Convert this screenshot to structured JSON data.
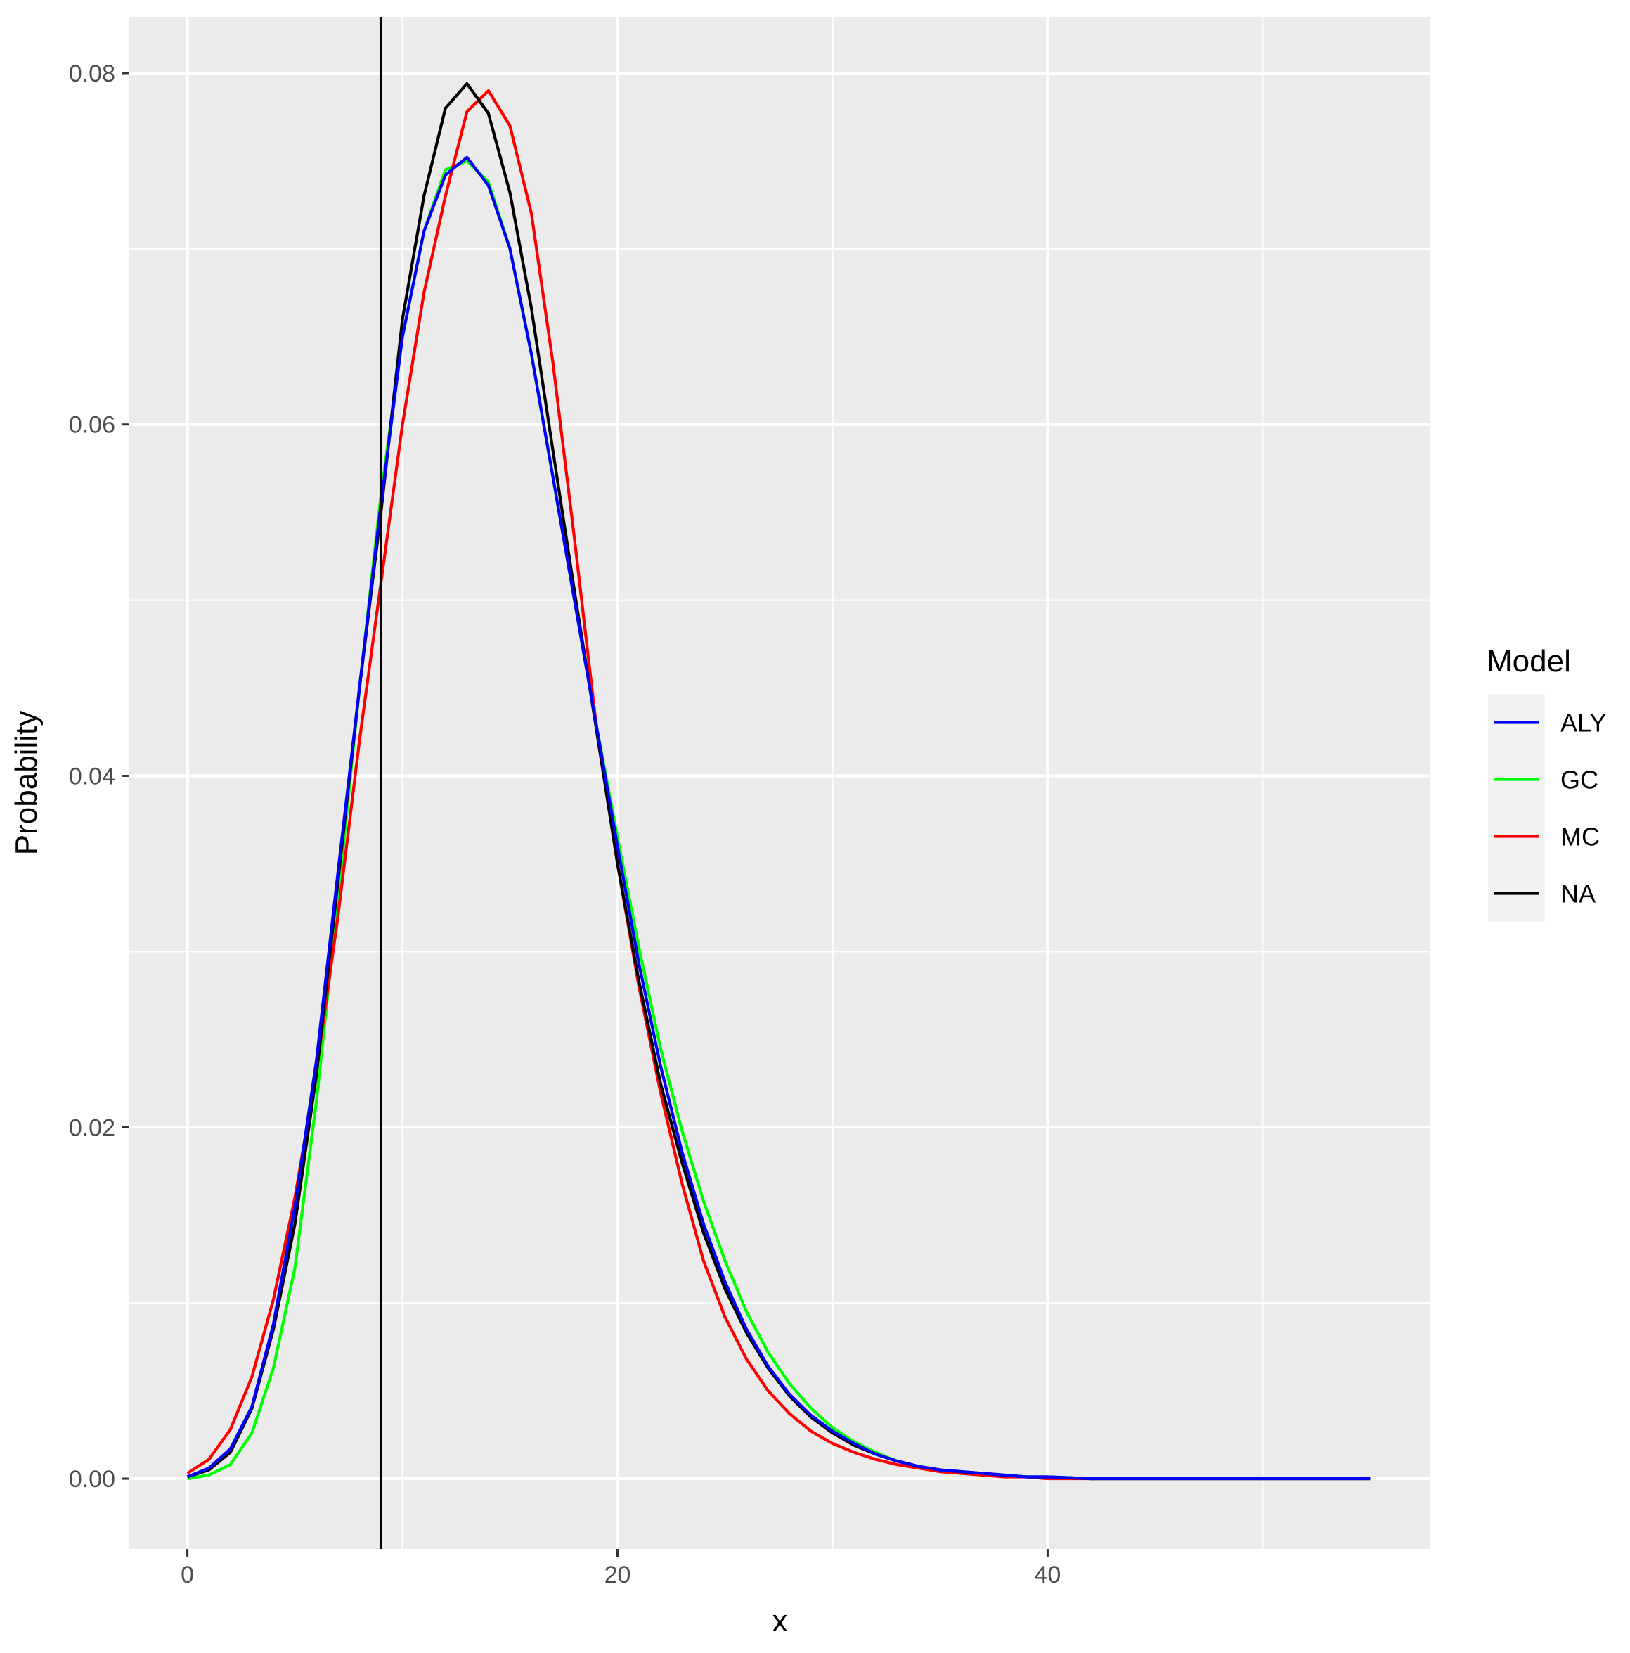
{
  "chart_data": {
    "type": "line",
    "xlabel": "x",
    "ylabel": "Probability",
    "xlim": [
      -2.7,
      57.8
    ],
    "ylim": [
      -0.004,
      0.0832
    ],
    "x_ticks": [
      0,
      20,
      40
    ],
    "x_tick_labels": [
      "0",
      "20",
      "40"
    ],
    "y_ticks": [
      0.0,
      0.02,
      0.04,
      0.06,
      0.08
    ],
    "y_tick_labels": [
      "0.00",
      "0.02",
      "0.04",
      "0.06",
      "0.08"
    ],
    "grid": true,
    "panel_background": "#ebebeb",
    "vline": {
      "x": 9,
      "color": "#000000"
    },
    "legend": {
      "title": "Model",
      "placement": "right",
      "entries": [
        {
          "label": "ALY",
          "color": "#0000ff"
        },
        {
          "label": "GC",
          "color": "#00ff00"
        },
        {
          "label": "MC",
          "color": "#ff0000"
        },
        {
          "label": "NA",
          "color": "#000000"
        }
      ]
    },
    "series": [
      {
        "name": "GC",
        "color": "#00ff00",
        "x": [
          0,
          1,
          2,
          3,
          4,
          5,
          6,
          7,
          8,
          9,
          10,
          11,
          12,
          13,
          14,
          15,
          16,
          17,
          18,
          19,
          20,
          21,
          22,
          23,
          24,
          25,
          26,
          27,
          28,
          29,
          30,
          31,
          32,
          33,
          34,
          35,
          36,
          37,
          38,
          39,
          40,
          42,
          44,
          46,
          48,
          50,
          52,
          55
        ],
        "y": [
          0.0,
          0.0002,
          0.0008,
          0.0026,
          0.0063,
          0.012,
          0.0215,
          0.033,
          0.045,
          0.056,
          0.065,
          0.071,
          0.0745,
          0.075,
          0.0738,
          0.07,
          0.064,
          0.057,
          0.05,
          0.043,
          0.0365,
          0.0302,
          0.0245,
          0.0198,
          0.0158,
          0.0124,
          0.0095,
          0.0072,
          0.0054,
          0.004,
          0.0029,
          0.0021,
          0.0015,
          0.001,
          0.0007,
          0.0005,
          0.0003,
          0.0002,
          0.0002,
          0.0001,
          0.0001,
          0.0,
          0.0,
          0.0,
          0.0,
          0.0,
          0.0,
          0.0
        ]
      },
      {
        "name": "MC",
        "color": "#ff0000",
        "x": [
          0,
          1,
          2,
          3,
          4,
          5,
          6,
          7,
          8,
          9,
          10,
          11,
          12,
          13,
          14,
          15,
          16,
          17,
          18,
          19,
          20,
          21,
          22,
          23,
          24,
          25,
          26,
          27,
          28,
          29,
          30,
          31,
          32,
          33,
          34,
          35,
          36,
          37,
          38,
          39,
          40,
          42,
          44,
          46,
          48,
          50,
          52,
          55
        ],
        "y": [
          0.0003,
          0.0011,
          0.0028,
          0.0058,
          0.0102,
          0.016,
          0.0232,
          0.032,
          0.042,
          0.051,
          0.06,
          0.0675,
          0.073,
          0.0778,
          0.079,
          0.077,
          0.072,
          0.0635,
          0.0535,
          0.043,
          0.035,
          0.028,
          0.022,
          0.0168,
          0.0124,
          0.0092,
          0.0068,
          0.005,
          0.0037,
          0.0027,
          0.002,
          0.0015,
          0.0011,
          0.0008,
          0.0006,
          0.0004,
          0.0003,
          0.0002,
          0.0001,
          0.0001,
          0.0,
          0.0,
          0.0,
          0.0,
          0.0,
          0.0,
          0.0,
          0.0
        ]
      },
      {
        "name": "NA",
        "color": "#000000",
        "x": [
          0,
          1,
          2,
          3,
          4,
          5,
          6,
          7,
          8,
          9,
          10,
          11,
          12,
          13,
          14,
          15,
          16,
          17,
          18,
          19,
          20,
          21,
          22,
          23,
          24,
          25,
          26,
          27,
          28,
          29,
          30,
          31,
          32,
          33,
          34,
          35,
          36,
          37,
          38,
          39,
          40,
          42,
          44,
          46,
          48,
          50,
          52,
          55
        ],
        "y": [
          0.0001,
          0.0005,
          0.0015,
          0.004,
          0.0085,
          0.0145,
          0.023,
          0.034,
          0.045,
          0.055,
          0.066,
          0.073,
          0.078,
          0.0794,
          0.0777,
          0.0732,
          0.0666,
          0.0585,
          0.0505,
          0.0428,
          0.035,
          0.0283,
          0.0225,
          0.018,
          0.014,
          0.0108,
          0.0083,
          0.0063,
          0.0047,
          0.0035,
          0.0026,
          0.0019,
          0.0014,
          0.001,
          0.0007,
          0.0005,
          0.0004,
          0.0003,
          0.0002,
          0.0001,
          0.0001,
          0.0,
          0.0,
          0.0,
          0.0,
          0.0,
          0.0,
          0.0
        ]
      },
      {
        "name": "ALY",
        "color": "#0000ff",
        "x": [
          0,
          1,
          2,
          3,
          4,
          5,
          6,
          7,
          8,
          9,
          10,
          11,
          12,
          13,
          14,
          15,
          16,
          17,
          18,
          19,
          20,
          21,
          22,
          23,
          24,
          25,
          26,
          27,
          28,
          29,
          30,
          31,
          32,
          33,
          34,
          35,
          36,
          37,
          38,
          39,
          40,
          42,
          44,
          46,
          48,
          50,
          52,
          55
        ],
        "y": [
          0.0001,
          0.0006,
          0.0017,
          0.0041,
          0.0088,
          0.0155,
          0.0238,
          0.0345,
          0.045,
          0.0555,
          0.065,
          0.071,
          0.0742,
          0.0752,
          0.0736,
          0.07,
          0.064,
          0.057,
          0.05,
          0.043,
          0.036,
          0.0293,
          0.0235,
          0.0186,
          0.0145,
          0.0112,
          0.0085,
          0.0064,
          0.0048,
          0.0036,
          0.0027,
          0.002,
          0.0014,
          0.001,
          0.0007,
          0.0005,
          0.0004,
          0.0003,
          0.0002,
          0.0001,
          0.0001,
          0.0,
          0.0,
          0.0,
          0.0,
          0.0,
          0.0,
          0.0
        ]
      }
    ]
  }
}
